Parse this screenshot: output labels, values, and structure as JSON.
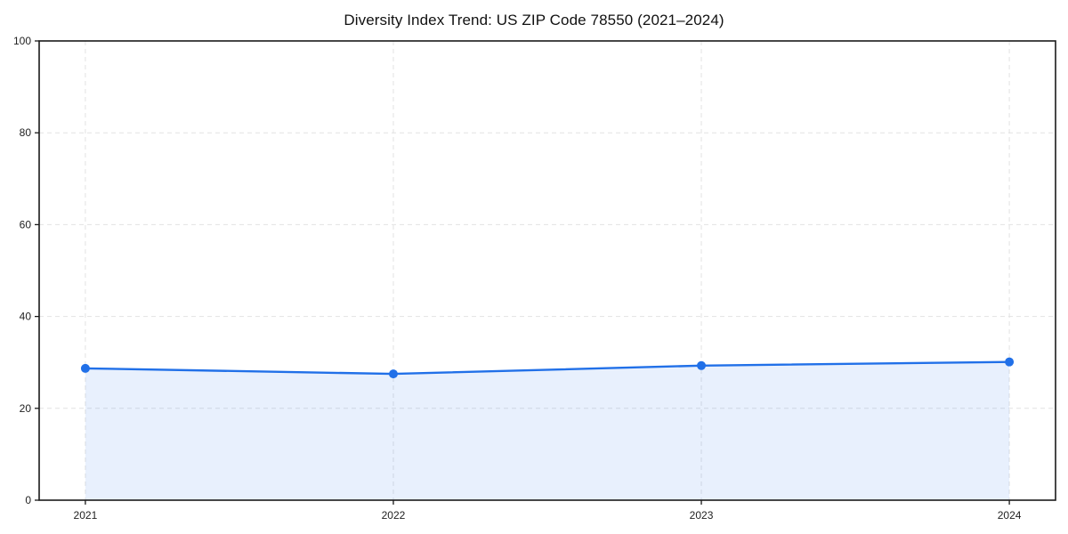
{
  "chart_data": {
    "type": "area",
    "title": "Diversity Index Trend: US ZIP Code 78550 (2021–2024)",
    "x": [
      2021,
      2022,
      2023,
      2024
    ],
    "series": [
      {
        "name": "Diversity Index",
        "values": [
          28.7,
          27.5,
          29.3,
          30.1
        ]
      }
    ],
    "xlabel": "",
    "ylabel": "",
    "ylim": [
      0,
      100
    ],
    "y_ticks": [
      0,
      20,
      40,
      60,
      80,
      100
    ],
    "x_tick_labels": [
      "2021",
      "2022",
      "2023",
      "2024"
    ],
    "grid": true,
    "grid_style": "dashed",
    "legend_position": "none",
    "colors": {
      "line": "#2170e8",
      "marker": "#2170e8",
      "area_fill": "rgba(33, 112, 232, 0.10)",
      "gridline": "#e2e2e2",
      "spine": "#1a1a1a",
      "background": "#ffffff",
      "title_text": "#111111",
      "tick_text": "#222222"
    }
  }
}
